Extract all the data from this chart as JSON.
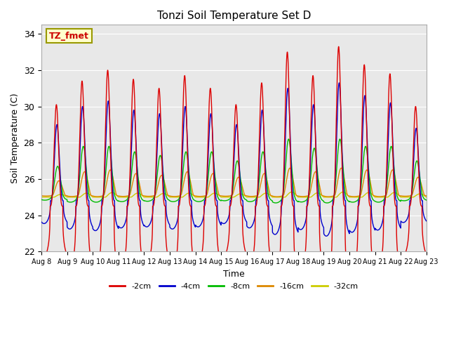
{
  "title": "Tonzi Soil Temperature Set D",
  "xlabel": "Time",
  "ylabel": "Soil Temperature (C)",
  "ylim": [
    22,
    34.5
  ],
  "n_days": 15,
  "xtick_labels": [
    "Aug 8",
    "Aug 9",
    "Aug 10",
    "Aug 11",
    "Aug 12",
    "Aug 13",
    "Aug 14",
    "Aug 15",
    "Aug 16",
    "Aug 17",
    "Aug 18",
    "Aug 19",
    "Aug 20",
    "Aug 21",
    "Aug 22",
    "Aug 23"
  ],
  "legend_entries": [
    "-2cm",
    "-4cm",
    "-8cm",
    "-16cm",
    "-32cm"
  ],
  "legend_colors": [
    "#dd0000",
    "#0000cc",
    "#00bb00",
    "#dd8800",
    "#cccc00"
  ],
  "annotation_text": "TZ_fmet",
  "annotation_color": "#cc0000",
  "annotation_bg": "#ffffcc",
  "annotation_border": "#999900",
  "bg_color": "#e8e8e8",
  "yticks": [
    22,
    24,
    26,
    28,
    30,
    32,
    34
  ],
  "depth_2cm": {
    "base": 24.5,
    "peak_amps": [
      5.6,
      6.9,
      7.5,
      7.0,
      6.5,
      7.2,
      6.5,
      5.6,
      6.8,
      8.5,
      7.2,
      8.8,
      7.8,
      7.3,
      5.5
    ],
    "trough_depth": 0.5,
    "phase": 0.58,
    "sharpness": 3.5
  },
  "depth_4cm": {
    "base": 24.8,
    "peak_amps": [
      4.2,
      5.2,
      5.5,
      5.0,
      4.8,
      5.2,
      4.8,
      4.2,
      5.0,
      6.2,
      5.3,
      6.5,
      5.8,
      5.4,
      4.0
    ],
    "trough_depth": 0.3,
    "phase": 0.6,
    "sharpness": 3.0
  },
  "depth_8cm": {
    "base": 25.0,
    "peak_amps": [
      1.7,
      2.8,
      2.8,
      2.5,
      2.3,
      2.5,
      2.5,
      2.0,
      2.5,
      3.2,
      2.7,
      3.2,
      2.8,
      2.8,
      2.0
    ],
    "trough_depth": 0.1,
    "phase": 0.63,
    "sharpness": 2.0
  },
  "depth_16cm": {
    "base": 25.1,
    "peak_amps": [
      0.8,
      1.3,
      1.4,
      1.2,
      1.1,
      1.3,
      1.2,
      1.0,
      1.2,
      1.5,
      1.3,
      1.5,
      1.4,
      1.4,
      1.0
    ],
    "trough_depth": 0.05,
    "phase": 0.68,
    "sharpness": 1.5
  },
  "depth_32cm": {
    "base": 25.0,
    "peak_amps": [
      0.15,
      0.22,
      0.25,
      0.22,
      0.2,
      0.22,
      0.22,
      0.18,
      0.22,
      0.28,
      0.23,
      0.28,
      0.25,
      0.25,
      0.18
    ],
    "trough_depth": 0.02,
    "phase": 0.75,
    "sharpness": 1.2
  }
}
